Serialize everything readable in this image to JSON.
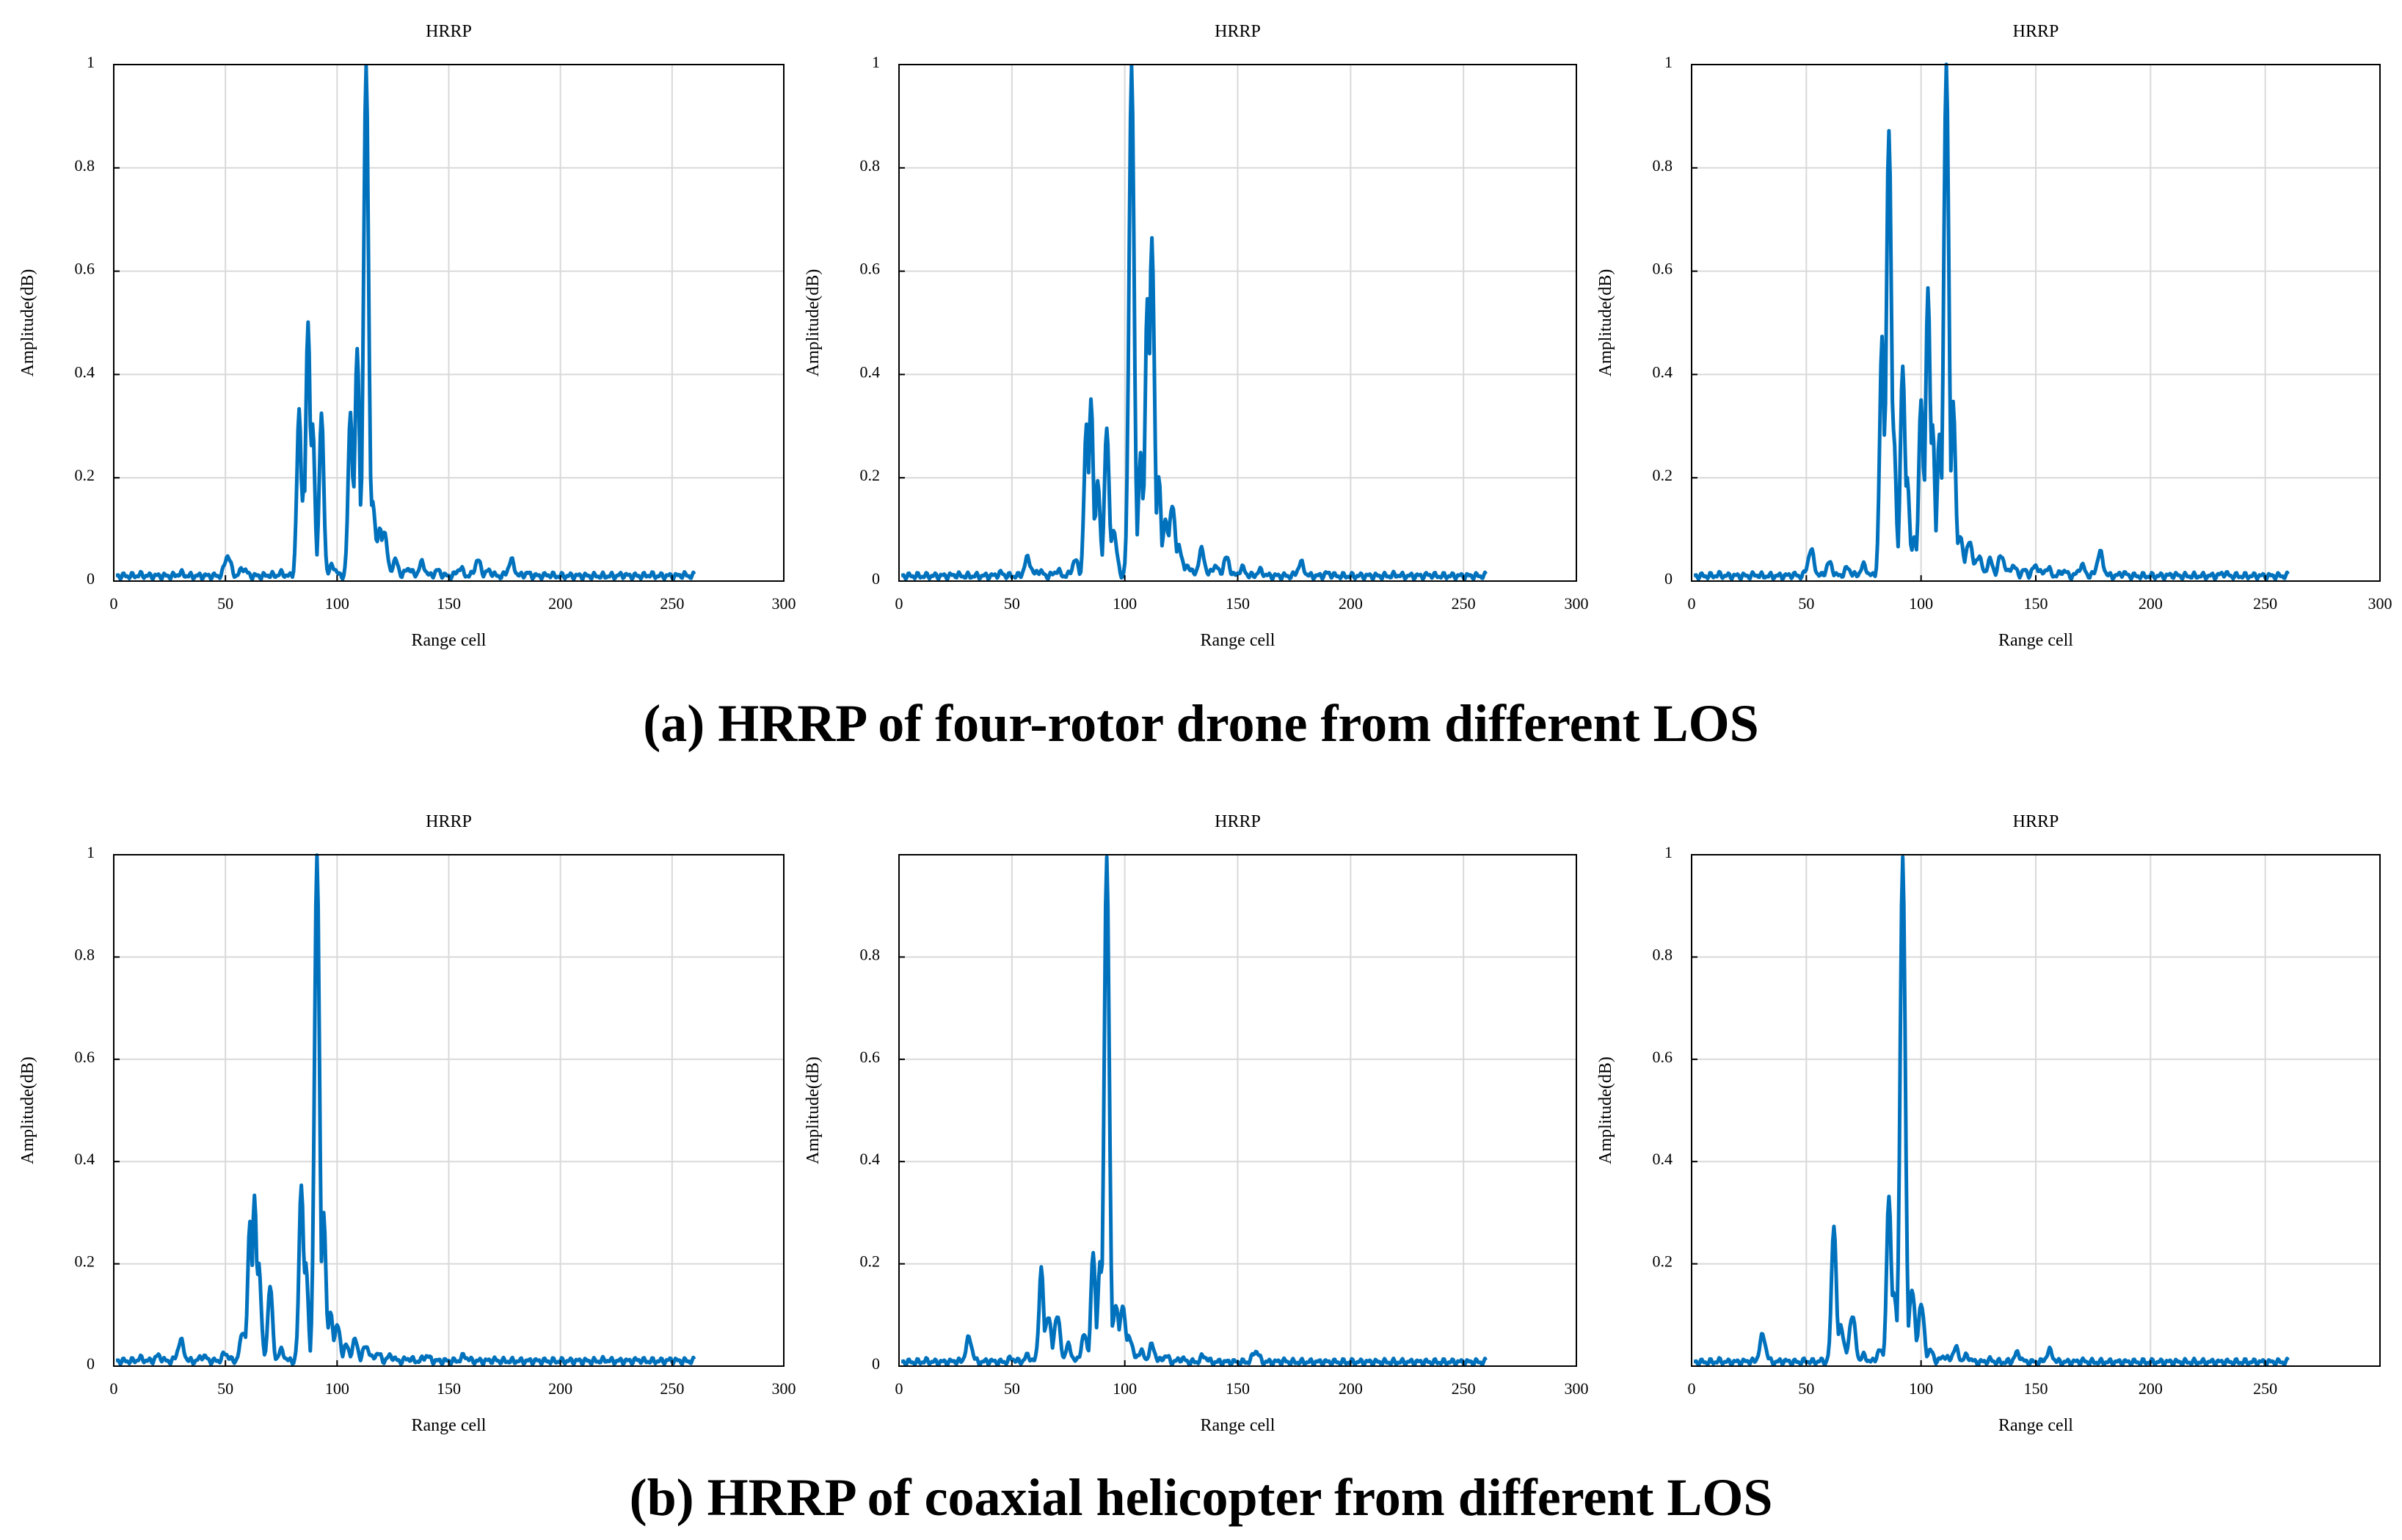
{
  "figure": {
    "caption_a": "(a) HRRP of four-rotor drone from different LOS",
    "caption_b": "(b) HRRP of coaxial helicopter from different LOS"
  },
  "style": {
    "line_color": "#0072BD",
    "grid_color": "#d9d9d9"
  },
  "chart_data": [
    {
      "type": "line",
      "row": "a",
      "col": 1,
      "title": "HRRP",
      "xlabel": "Range cell",
      "ylabel": "Amplitude(dB)",
      "xlim": [
        0,
        300
      ],
      "ylim": [
        0,
        1
      ],
      "grid": true,
      "xticks": [
        0,
        50,
        100,
        150,
        200,
        250,
        300
      ],
      "yticks": [
        0,
        0.2,
        0.4,
        0.6,
        0.8,
        1
      ],
      "ytick_labels": [
        "0",
        "0.2",
        "0.4",
        "0.6",
        "0.8",
        "1"
      ],
      "series": [
        {
          "name": "HRRP",
          "x_start": 1,
          "x_end": 260,
          "baseline": 0.01,
          "peaks": [
            [
              12,
              0.012
            ],
            [
              30,
              0.015
            ],
            [
              51,
              0.05
            ],
            [
              58,
              0.025
            ],
            [
              70,
              0.012
            ],
            [
              75,
              0.015
            ],
            [
              83,
              0.33
            ],
            [
              85,
              0.18
            ],
            [
              87,
              0.5
            ],
            [
              89,
              0.3
            ],
            [
              93,
              0.32
            ],
            [
              98,
              0.03
            ],
            [
              102,
              0.01
            ],
            [
              106,
              0.33
            ],
            [
              108,
              0.2
            ],
            [
              109,
              0.45
            ],
            [
              113,
              1.0
            ],
            [
              116,
              0.15
            ],
            [
              119,
              0.1
            ],
            [
              121,
              0.1
            ],
            [
              126,
              0.04
            ],
            [
              132,
              0.025
            ],
            [
              138,
              0.035
            ],
            [
              145,
              0.02
            ],
            [
              155,
              0.025
            ],
            [
              163,
              0.04
            ],
            [
              168,
              0.02
            ],
            [
              178,
              0.04
            ],
            [
              185,
              0.015
            ],
            [
              195,
              0.012
            ],
            [
              228,
              0.012
            ],
            [
              240,
              0.012
            ],
            [
              255,
              0.012
            ]
          ]
        }
      ]
    },
    {
      "type": "line",
      "row": "a",
      "col": 2,
      "title": "HRRP",
      "xlabel": "Range cell",
      "ylabel": "Amplitude(dB)",
      "xlim": [
        0,
        300
      ],
      "ylim": [
        0,
        1
      ],
      "grid": true,
      "xticks": [
        0,
        50,
        100,
        150,
        200,
        250,
        300
      ],
      "yticks": [
        0,
        0.2,
        0.4,
        0.6,
        0.8,
        1
      ],
      "ytick_labels": [
        "0",
        "0.2",
        "0.4",
        "0.6",
        "0.8",
        "1"
      ],
      "series": [
        {
          "name": "HRRP",
          "x_start": 1,
          "x_end": 260,
          "baseline": 0.01,
          "peaks": [
            [
              12,
              0.01
            ],
            [
              25,
              0.012
            ],
            [
              45,
              0.015
            ],
            [
              57,
              0.045
            ],
            [
              62,
              0.02
            ],
            [
              70,
              0.02
            ],
            [
              78,
              0.04
            ],
            [
              83,
              0.3
            ],
            [
              85,
              0.35
            ],
            [
              88,
              0.2
            ],
            [
              92,
              0.3
            ],
            [
              95,
              0.1
            ],
            [
              103,
              1.0
            ],
            [
              107,
              0.25
            ],
            [
              110,
              0.55
            ],
            [
              112,
              0.66
            ],
            [
              115,
              0.2
            ],
            [
              118,
              0.12
            ],
            [
              121,
              0.15
            ],
            [
              124,
              0.07
            ],
            [
              128,
              0.03
            ],
            [
              134,
              0.06
            ],
            [
              140,
              0.03
            ],
            [
              145,
              0.045
            ],
            [
              152,
              0.025
            ],
            [
              160,
              0.02
            ],
            [
              178,
              0.035
            ],
            [
              190,
              0.015
            ],
            [
              220,
              0.012
            ],
            [
              235,
              0.012
            ],
            [
              250,
              0.01
            ]
          ]
        }
      ]
    },
    {
      "type": "line",
      "row": "a",
      "col": 3,
      "title": "HRRP",
      "xlabel": "Range cell",
      "ylabel": "Amplitude(dB)",
      "xlim": [
        0,
        300
      ],
      "ylim": [
        0,
        1
      ],
      "grid": true,
      "xticks": [
        0,
        50,
        100,
        150,
        200,
        250,
        300
      ],
      "yticks": [
        0,
        0.2,
        0.4,
        0.6,
        0.8,
        1
      ],
      "ytick_labels": [
        "0",
        "0.2",
        "0.4",
        "0.6",
        "0.8",
        "1"
      ],
      "series": [
        {
          "name": "HRRP",
          "x_start": 1,
          "x_end": 260,
          "baseline": 0.01,
          "peaks": [
            [
              12,
              0.012
            ],
            [
              28,
              0.012
            ],
            [
              44,
              0.012
            ],
            [
              52,
              0.06
            ],
            [
              60,
              0.035
            ],
            [
              68,
              0.025
            ],
            [
              75,
              0.03
            ],
            [
              83,
              0.47
            ],
            [
              86,
              0.87
            ],
            [
              88,
              0.3
            ],
            [
              92,
              0.42
            ],
            [
              94,
              0.2
            ],
            [
              97,
              0.08
            ],
            [
              100,
              0.35
            ],
            [
              103,
              0.57
            ],
            [
              105,
              0.3
            ],
            [
              108,
              0.28
            ],
            [
              111,
              1.0
            ],
            [
              114,
              0.35
            ],
            [
              117,
              0.09
            ],
            [
              121,
              0.08
            ],
            [
              125,
              0.05
            ],
            [
              130,
              0.04
            ],
            [
              135,
              0.05
            ],
            [
              140,
              0.03
            ],
            [
              145,
              0.02
            ],
            [
              150,
              0.03
            ],
            [
              155,
              0.025
            ],
            [
              162,
              0.02
            ],
            [
              170,
              0.03
            ],
            [
              178,
              0.055
            ],
            [
              188,
              0.015
            ],
            [
              210,
              0.012
            ],
            [
              232,
              0.015
            ],
            [
              250,
              0.01
            ]
          ]
        }
      ]
    },
    {
      "type": "line",
      "row": "b",
      "col": 1,
      "title": "HRRP",
      "xlabel": "Range cell",
      "ylabel": "Amplitude(dB)",
      "xlim": [
        0,
        300
      ],
      "ylim": [
        0,
        1
      ],
      "grid": true,
      "xticks": [
        0,
        50,
        100,
        150,
        200,
        250,
        300
      ],
      "yticks": [
        0,
        0.2,
        0.4,
        0.6,
        0.8,
        1
      ],
      "ytick_labels": [
        "0",
        "0.2",
        "0.4",
        "0.6",
        "0.8",
        "1"
      ],
      "series": [
        {
          "name": "HRRP",
          "x_start": 1,
          "x_end": 260,
          "baseline": 0.01,
          "peaks": [
            [
              12,
              0.015
            ],
            [
              20,
              0.02
            ],
            [
              30,
              0.05
            ],
            [
              40,
              0.02
            ],
            [
              50,
              0.025
            ],
            [
              58,
              0.07
            ],
            [
              61,
              0.28
            ],
            [
              63,
              0.33
            ],
            [
              65,
              0.2
            ],
            [
              70,
              0.16
            ],
            [
              75,
              0.03
            ],
            [
              84,
              0.36
            ],
            [
              86,
              0.2
            ],
            [
              91,
              1.0
            ],
            [
              94,
              0.3
            ],
            [
              97,
              0.1
            ],
            [
              100,
              0.08
            ],
            [
              104,
              0.04
            ],
            [
              108,
              0.05
            ],
            [
              113,
              0.04
            ],
            [
              118,
              0.025
            ],
            [
              124,
              0.02
            ],
            [
              132,
              0.015
            ],
            [
              140,
              0.02
            ],
            [
              157,
              0.02
            ],
            [
              170,
              0.012
            ],
            [
              200,
              0.01
            ],
            [
              220,
              0.012
            ],
            [
              235,
              0.012
            ],
            [
              250,
              0.012
            ]
          ]
        }
      ]
    },
    {
      "type": "line",
      "row": "b",
      "col": 2,
      "title": "HRRP",
      "xlabel": "Range cell",
      "ylabel": "Amplitude(dB)",
      "xlim": [
        0,
        300
      ],
      "ylim": [
        0,
        1
      ],
      "grid": true,
      "xticks": [
        0,
        50,
        100,
        150,
        200,
        250,
        300
      ],
      "yticks": [
        0,
        0.2,
        0.4,
        0.6,
        0.8
      ],
      "ytick_labels": [
        "0",
        "0.2",
        "0.4",
        "0.6",
        "0.8"
      ],
      "series": [
        {
          "name": "HRRP",
          "x_start": 1,
          "x_end": 260,
          "baseline": 0.008,
          "peaks": [
            [
              12,
              0.01
            ],
            [
              25,
              0.01
            ],
            [
              31,
              0.055
            ],
            [
              40,
              0.01
            ],
            [
              50,
              0.015
            ],
            [
              57,
              0.02
            ],
            [
              63,
              0.19
            ],
            [
              66,
              0.1
            ],
            [
              70,
              0.1
            ],
            [
              75,
              0.04
            ],
            [
              82,
              0.06
            ],
            [
              86,
              0.22
            ],
            [
              89,
              0.2
            ],
            [
              92,
              1.0
            ],
            [
              96,
              0.12
            ],
            [
              99,
              0.12
            ],
            [
              102,
              0.06
            ],
            [
              107,
              0.03
            ],
            [
              112,
              0.04
            ],
            [
              118,
              0.02
            ],
            [
              125,
              0.015
            ],
            [
              135,
              0.02
            ],
            [
              158,
              0.03
            ],
            [
              170,
              0.01
            ],
            [
              190,
              0.008
            ],
            [
              220,
              0.008
            ],
            [
              250,
              0.008
            ]
          ]
        }
      ]
    },
    {
      "type": "line",
      "row": "b",
      "col": 3,
      "title": "HRRP",
      "xlabel": "Range cell",
      "ylabel": "Amplitude(dB)",
      "xlim": [
        0,
        300
      ],
      "ylim": [
        0,
        1
      ],
      "grid": true,
      "xticks": [
        0,
        50,
        100,
        150,
        200,
        250
      ],
      "yticks": [
        0.2,
        0.4,
        0.6,
        0.8,
        1
      ],
      "ytick_labels": [
        "0.2",
        "0.4",
        "0.6",
        "0.8",
        "1"
      ],
      "series": [
        {
          "name": "HRRP",
          "x_start": 1,
          "x_end": 260,
          "baseline": 0.008,
          "peaks": [
            [
              12,
              0.01
            ],
            [
              25,
              0.01
            ],
            [
              31,
              0.06
            ],
            [
              40,
              0.01
            ],
            [
              50,
              0.01
            ],
            [
              56,
              0.01
            ],
            [
              62,
              0.28
            ],
            [
              65,
              0.08
            ],
            [
              70,
              0.1
            ],
            [
              75,
              0.02
            ],
            [
              82,
              0.03
            ],
            [
              86,
              0.33
            ],
            [
              88,
              0.15
            ],
            [
              92,
              1.0
            ],
            [
              96,
              0.15
            ],
            [
              100,
              0.12
            ],
            [
              104,
              0.03
            ],
            [
              110,
              0.02
            ],
            [
              115,
              0.035
            ],
            [
              120,
              0.02
            ],
            [
              130,
              0.012
            ],
            [
              142,
              0.025
            ],
            [
              156,
              0.03
            ],
            [
              170,
              0.01
            ],
            [
              200,
              0.008
            ],
            [
              230,
              0.008
            ],
            [
              250,
              0.008
            ]
          ]
        }
      ]
    }
  ]
}
